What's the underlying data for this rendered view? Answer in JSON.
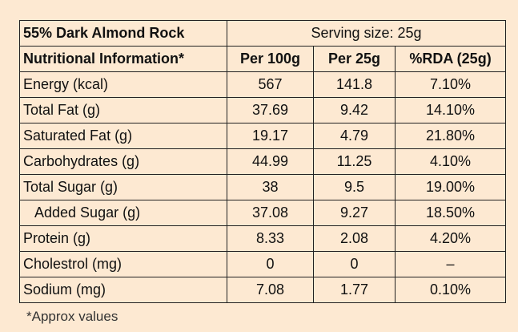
{
  "table": {
    "title": "55% Dark Almond Rock",
    "serving": "Serving size: 25g",
    "header": [
      "Nutritional Information*",
      "Per 100g",
      "Per 25g",
      "%RDA (25g)"
    ],
    "rows": [
      [
        "Energy (kcal)",
        "567",
        "141.8",
        "7.10%"
      ],
      [
        "Total Fat (g)",
        "37.69",
        "9.42",
        "14.10%"
      ],
      [
        "Saturated Fat (g)",
        "19.17",
        "4.79",
        "21.80%"
      ],
      [
        "Carbohydrates (g)",
        "44.99",
        "11.25",
        "4.10%"
      ],
      [
        "Total Sugar (g)",
        "38",
        "9.5",
        "19.00%"
      ],
      [
        "Added Sugar (g)",
        "37.08",
        "9.27",
        "18.50%"
      ],
      [
        "Protein (g)",
        "8.33",
        "2.08",
        "4.20%"
      ],
      [
        "Cholestrol (mg)",
        "0",
        "0",
        "–"
      ],
      [
        "Sodium (mg)",
        "7.08",
        "1.77",
        "0.10%"
      ]
    ],
    "footnote": "*Approx values"
  }
}
